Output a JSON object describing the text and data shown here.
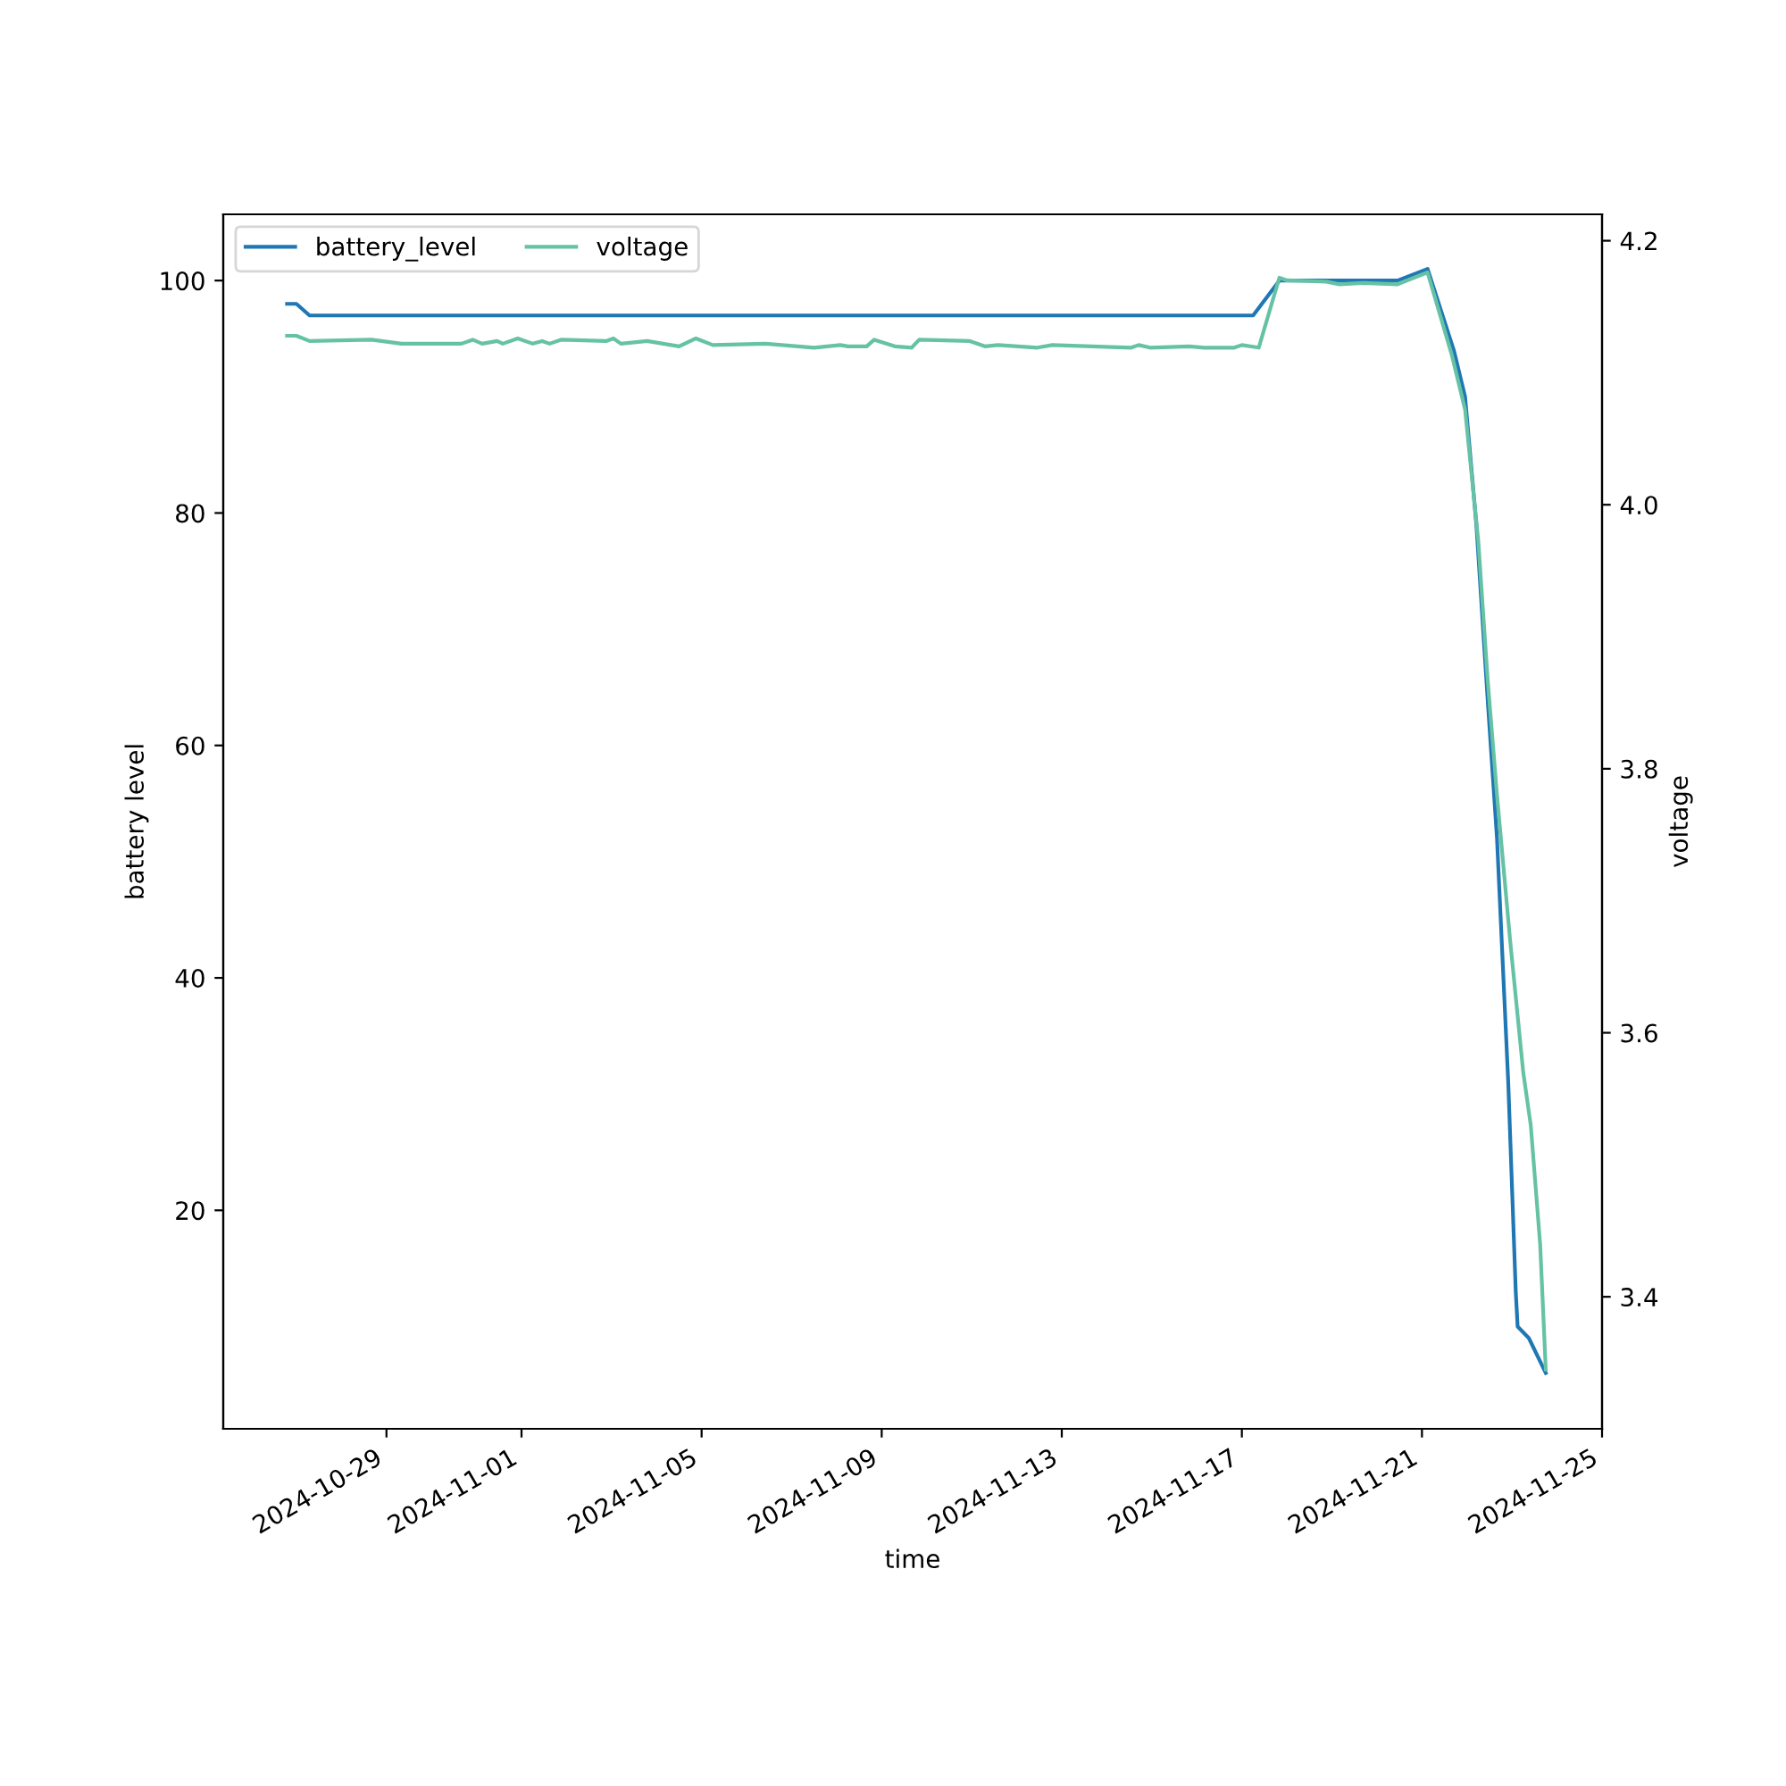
{
  "chart_data": {
    "type": "line",
    "xlabel": "time",
    "ylabel": "battery level",
    "y2label": "voltage",
    "xlim": [
      "2024-10-25T09:00",
      "2024-11-25T00:00"
    ],
    "xticks": [
      "2024-10-29",
      "2024-11-01",
      "2024-11-05",
      "2024-11-09",
      "2024-11-13",
      "2024-11-17",
      "2024-11-21",
      "2024-11-25"
    ],
    "ylim": [
      1.2,
      105.7
    ],
    "yticks": [
      20,
      40,
      60,
      80,
      100
    ],
    "y2lim": [
      3.3,
      4.22
    ],
    "y2ticks": [
      3.4,
      3.6,
      3.8,
      {
        "value": 4.0,
        "label": "4.0"
      },
      4.2
    ],
    "grid": false,
    "legend": "top left",
    "marker": "none",
    "line_style": "solid",
    "series": [
      {
        "name": "battery_level",
        "color": "#1f77b4",
        "x": [
          "2024-10-26T19:00",
          "2024-10-27T00:00",
          "2024-10-27T07:00",
          "2024-11-17T06:00",
          "2024-11-17T20:00",
          "2024-11-20T11:00",
          "2024-11-21T03:00",
          "2024-11-21T17:00",
          "2024-11-21T23:00",
          "2024-11-22T05:00",
          "2024-11-22T11:00",
          "2024-11-22T16:00",
          "2024-11-22T22:00",
          "2024-11-23T02:00",
          "2024-11-23T03:00",
          "2024-11-23T09:00",
          "2024-11-23T18:00"
        ],
        "values": [
          98,
          98,
          97,
          97,
          100,
          100,
          101,
          94,
          90,
          79,
          64,
          52,
          31,
          13,
          10,
          9,
          6
        ]
      },
      {
        "name": "voltage",
        "color": "#66c2a5",
        "axis": "y2",
        "x": [
          "2024-10-26T19:00",
          "2024-10-27T00:00",
          "2024-10-27T07:00",
          "2024-10-28T16:00",
          "2024-10-29T08:00",
          "2024-10-30T16:00",
          "2024-10-30T22:00",
          "2024-10-31T03:00",
          "2024-10-31T11:00",
          "2024-10-31T14:00",
          "2024-10-31T22:00",
          "2024-11-01T06:00",
          "2024-11-01T11:00",
          "2024-11-01T15:00",
          "2024-11-01T21:00",
          "2024-11-02T21:00",
          "2024-11-03T01:00",
          "2024-11-03T05:00",
          "2024-11-03T19:00",
          "2024-11-04T12:00",
          "2024-11-04T21:00",
          "2024-11-05T06:00",
          "2024-11-06T10:00",
          "2024-11-07T12:00",
          "2024-11-08T02:00",
          "2024-11-08T06:00",
          "2024-11-08T16:00",
          "2024-11-08T20:00",
          "2024-11-09T07:00",
          "2024-11-09T16:00",
          "2024-11-09T20:00",
          "2024-11-10T23:00",
          "2024-11-11T07:00",
          "2024-11-11T14:00",
          "2024-11-12T11:00",
          "2024-11-12T19:00",
          "2024-11-14T13:00",
          "2024-11-14T17:00",
          "2024-11-14T23:00",
          "2024-11-15T20:00",
          "2024-11-16T04:00",
          "2024-11-16T20:00",
          "2024-11-17T00:00",
          "2024-11-17T09:00",
          "2024-11-17T20:00",
          "2024-11-18T00:00",
          "2024-11-18T21:00",
          "2024-11-19T04:00",
          "2024-11-19T17:00",
          "2024-11-20T11:00",
          "2024-11-21T03:00",
          "2024-11-21T16:00",
          "2024-11-21T23:00",
          "2024-11-22T06:00",
          "2024-11-22T11:00",
          "2024-11-22T16:00",
          "2024-11-22T23:00",
          "2024-11-23T06:00",
          "2024-11-23T10:00",
          "2024-11-23T15:00",
          "2024-11-23T18:00"
        ],
        "values": [
          4.128,
          4.128,
          4.124,
          4.125,
          4.122,
          4.122,
          4.125,
          4.122,
          4.124,
          4.122,
          4.126,
          4.122,
          4.124,
          4.122,
          4.125,
          4.124,
          4.126,
          4.122,
          4.124,
          4.12,
          4.126,
          4.121,
          4.122,
          4.119,
          4.121,
          4.12,
          4.12,
          4.125,
          4.12,
          4.119,
          4.125,
          4.124,
          4.12,
          4.121,
          4.119,
          4.121,
          4.119,
          4.121,
          4.119,
          4.12,
          4.119,
          4.119,
          4.121,
          4.119,
          4.172,
          4.17,
          4.169,
          4.167,
          4.168,
          4.167,
          4.176,
          4.113,
          4.072,
          3.973,
          3.868,
          3.78,
          3.67,
          3.57,
          3.53,
          3.44,
          3.345
        ]
      }
    ]
  }
}
